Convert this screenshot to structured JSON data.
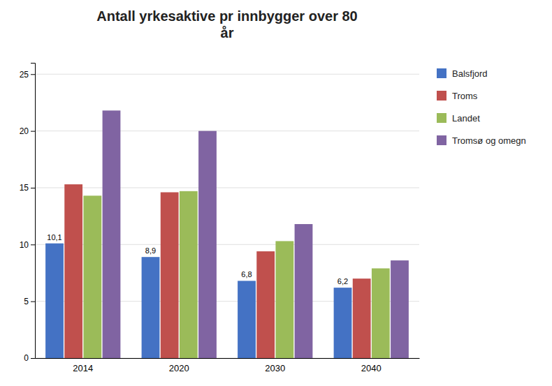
{
  "chart_data": {
    "type": "bar",
    "title": "Antall yrkesaktive pr innbygger over 80\når",
    "categories": [
      "2014",
      "2020",
      "2030",
      "2040"
    ],
    "series": [
      {
        "name": "Balsfjord",
        "color": "#4472C4",
        "values": [
          10.1,
          8.9,
          6.8,
          6.2
        ],
        "value_labels": [
          "10,1",
          "8,9",
          "6,8",
          "6,2"
        ]
      },
      {
        "name": "Troms",
        "color": "#C0504D",
        "values": [
          15.3,
          14.6,
          9.4,
          7.0
        ]
      },
      {
        "name": "Landet",
        "color": "#9BBB59",
        "values": [
          14.3,
          14.7,
          10.3,
          7.9
        ]
      },
      {
        "name": "Tromsø og omegn",
        "color": "#8064A2",
        "values": [
          21.8,
          20.0,
          11.8,
          8.6
        ]
      }
    ],
    "ylim": [
      0,
      26
    ],
    "yticks": [
      0,
      5,
      10,
      15,
      20,
      25
    ],
    "grid": true,
    "legend": "right"
  }
}
